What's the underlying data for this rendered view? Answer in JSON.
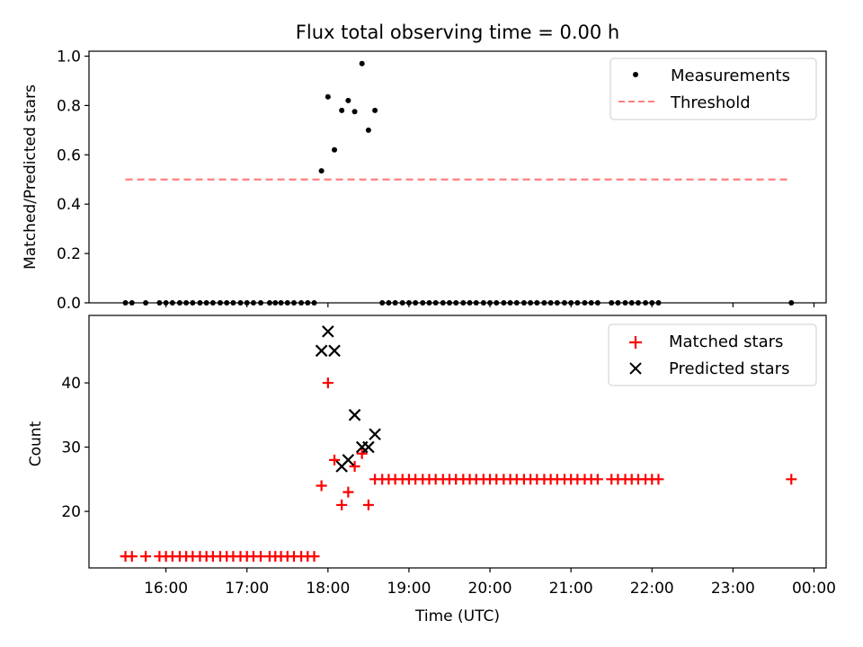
{
  "chart_data": [
    {
      "type": "scatter",
      "title": "Flux total observing time = 0.00 h",
      "xlabel": "",
      "ylabel": "Matched/Predicted stars",
      "xlim_hours": [
        15.05,
        24.15
      ],
      "ylim": [
        0,
        1.02
      ],
      "yticks": [
        0,
        0.2,
        0.4,
        0.6,
        0.8,
        1.0
      ],
      "yticklabels": [
        "0.0",
        "0.2",
        "0.4",
        "0.6",
        "0.8",
        "1.0"
      ],
      "legend_position": "top-right",
      "grid": false,
      "series": [
        {
          "name": "Measurements",
          "marker": "dot",
          "color": "#000000",
          "x": [
            15.5,
            15.58,
            15.75,
            15.92,
            16.0,
            16.08,
            16.17,
            16.25,
            16.33,
            16.42,
            16.5,
            16.58,
            16.67,
            16.75,
            16.83,
            16.92,
            17.0,
            17.08,
            17.17,
            17.28,
            17.35,
            17.42,
            17.5,
            17.58,
            17.67,
            17.75,
            17.83,
            17.92,
            18.0,
            18.08,
            18.17,
            18.25,
            18.33,
            18.42,
            18.5,
            18.58,
            18.67,
            18.75,
            18.83,
            18.92,
            19.0,
            19.08,
            19.17,
            19.25,
            19.33,
            19.42,
            19.5,
            19.58,
            19.67,
            19.75,
            19.83,
            19.92,
            20.0,
            20.08,
            20.17,
            20.25,
            20.33,
            20.42,
            20.5,
            20.58,
            20.67,
            20.75,
            20.83,
            20.92,
            21.0,
            21.08,
            21.17,
            21.25,
            21.33,
            21.5,
            21.58,
            21.67,
            21.75,
            21.83,
            21.92,
            22.0,
            22.08,
            23.72
          ],
          "y": [
            0,
            0,
            0,
            0,
            0,
            0,
            0,
            0,
            0,
            0,
            0,
            0,
            0,
            0,
            0,
            0,
            0,
            0,
            0,
            0,
            0,
            0,
            0,
            0,
            0,
            0,
            0,
            0.535,
            0.835,
            0.62,
            0.78,
            0.82,
            0.775,
            0.97,
            0.7,
            0.78,
            0,
            0,
            0,
            0,
            0,
            0,
            0,
            0,
            0,
            0,
            0,
            0,
            0,
            0,
            0,
            0,
            0,
            0,
            0,
            0,
            0,
            0,
            0,
            0,
            0,
            0,
            0,
            0,
            0,
            0,
            0,
            0,
            0,
            0,
            0,
            0,
            0,
            0,
            0,
            0,
            0,
            0
          ]
        },
        {
          "name": "Threshold",
          "style": "dashed",
          "color": "#ff7f7f",
          "x": [
            15.5,
            23.72
          ],
          "y": [
            0.5,
            0.5
          ]
        }
      ]
    },
    {
      "type": "scatter",
      "title": "",
      "xlabel": "Time (UTC)",
      "ylabel": "Count",
      "xlim_hours": [
        15.05,
        24.15
      ],
      "ylim": [
        11.2,
        50.5
      ],
      "yticks": [
        20,
        30,
        40
      ],
      "yticklabels": [
        "20",
        "30",
        "40"
      ],
      "xticks_hours": [
        16,
        17,
        18,
        19,
        20,
        21,
        22,
        23,
        24
      ],
      "xticklabels": [
        "16:00",
        "17:00",
        "18:00",
        "19:00",
        "20:00",
        "21:00",
        "22:00",
        "23:00",
        "00:00"
      ],
      "legend_position": "top-right",
      "grid": false,
      "series": [
        {
          "name": "Matched stars",
          "marker": "plus",
          "color": "#ff0000",
          "x": [
            15.5,
            15.58,
            15.75,
            15.92,
            16.0,
            16.08,
            16.17,
            16.25,
            16.33,
            16.42,
            16.5,
            16.58,
            16.67,
            16.75,
            16.83,
            16.92,
            17.0,
            17.08,
            17.17,
            17.28,
            17.35,
            17.42,
            17.5,
            17.58,
            17.67,
            17.75,
            17.83,
            17.92,
            18.0,
            18.08,
            18.17,
            18.25,
            18.33,
            18.42,
            18.5,
            18.58,
            18.67,
            18.75,
            18.83,
            18.92,
            19.0,
            19.08,
            19.17,
            19.25,
            19.33,
            19.42,
            19.5,
            19.58,
            19.67,
            19.75,
            19.83,
            19.92,
            20.0,
            20.08,
            20.17,
            20.25,
            20.33,
            20.42,
            20.5,
            20.58,
            20.67,
            20.75,
            20.83,
            20.92,
            21.0,
            21.08,
            21.17,
            21.25,
            21.33,
            21.5,
            21.58,
            21.67,
            21.75,
            21.83,
            21.92,
            22.0,
            22.08,
            23.72
          ],
          "y": [
            13,
            13,
            13,
            13,
            13,
            13,
            13,
            13,
            13,
            13,
            13,
            13,
            13,
            13,
            13,
            13,
            13,
            13,
            13,
            13,
            13,
            13,
            13,
            13,
            13,
            13,
            13,
            24,
            40,
            28,
            21,
            23,
            27,
            29,
            21,
            25,
            25,
            25,
            25,
            25,
            25,
            25,
            25,
            25,
            25,
            25,
            25,
            25,
            25,
            25,
            25,
            25,
            25,
            25,
            25,
            25,
            25,
            25,
            25,
            25,
            25,
            25,
            25,
            25,
            25,
            25,
            25,
            25,
            25,
            25,
            25,
            25,
            25,
            25,
            25,
            25,
            25,
            25
          ]
        },
        {
          "name": "Predicted stars",
          "marker": "x",
          "color": "#000000",
          "x": [
            17.92,
            18.0,
            18.08,
            18.17,
            18.25,
            18.33,
            18.42,
            18.5,
            18.58
          ],
          "y": [
            45,
            48,
            45,
            27,
            28,
            35,
            30,
            30,
            32
          ]
        }
      ]
    }
  ]
}
